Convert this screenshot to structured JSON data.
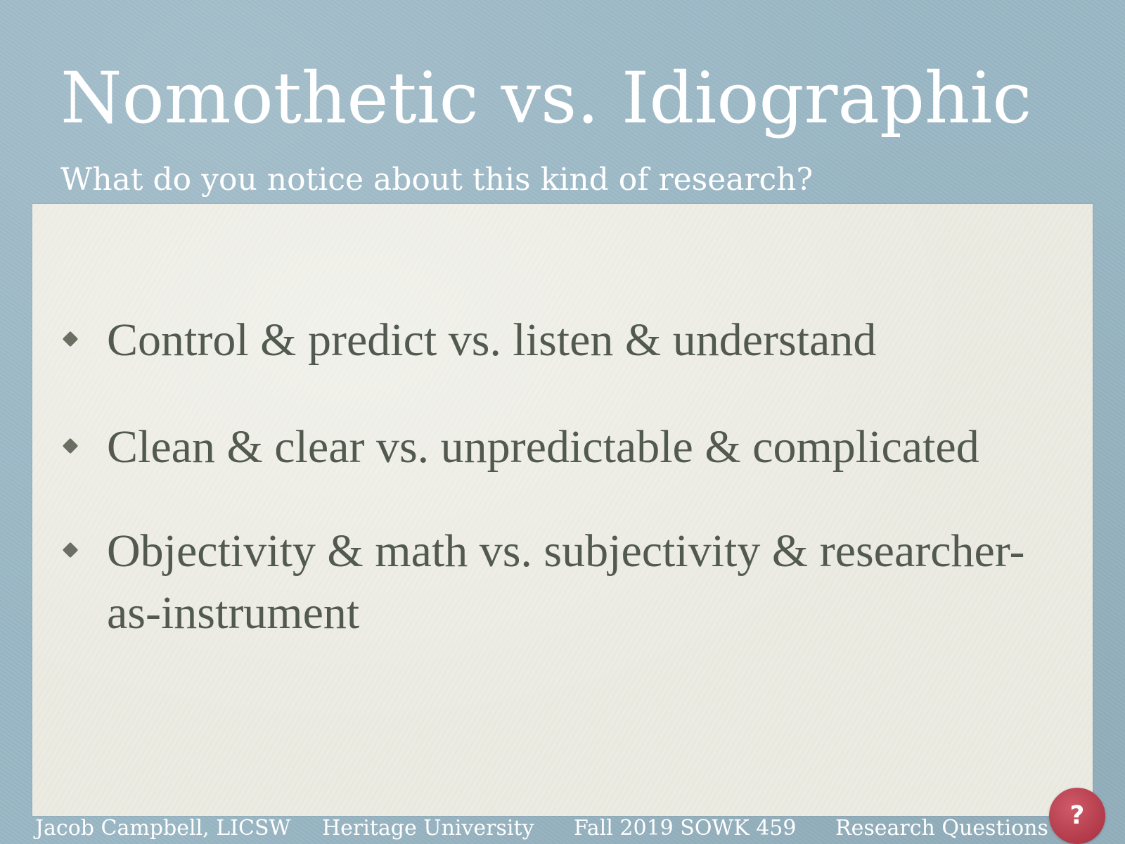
{
  "slide": {
    "title": "Nomothetic vs. Idiographic",
    "subtitle": "What do you notice about this kind of research?"
  },
  "bullets": [
    {
      "text": "Control & predict vs. listen & understand"
    },
    {
      "text": "Clean & clear vs. unpredictable & complicated"
    },
    {
      "text": "Objectivity & math vs. subjectivity & researcher-as-instrument"
    }
  ],
  "footer": {
    "author": "Jacob Campbell, LICSW",
    "university": "Heritage University",
    "course": "Fall 2019 SOWK 459",
    "topic": "Research Questions"
  },
  "help_badge": {
    "symbol": "?",
    "icon": "question-icon"
  },
  "colors": {
    "background": "#9bb8c6",
    "panel": "#ebebe2",
    "title_text": "#ffffff",
    "body_text": "#525a4f",
    "badge": "#b23a4a"
  }
}
